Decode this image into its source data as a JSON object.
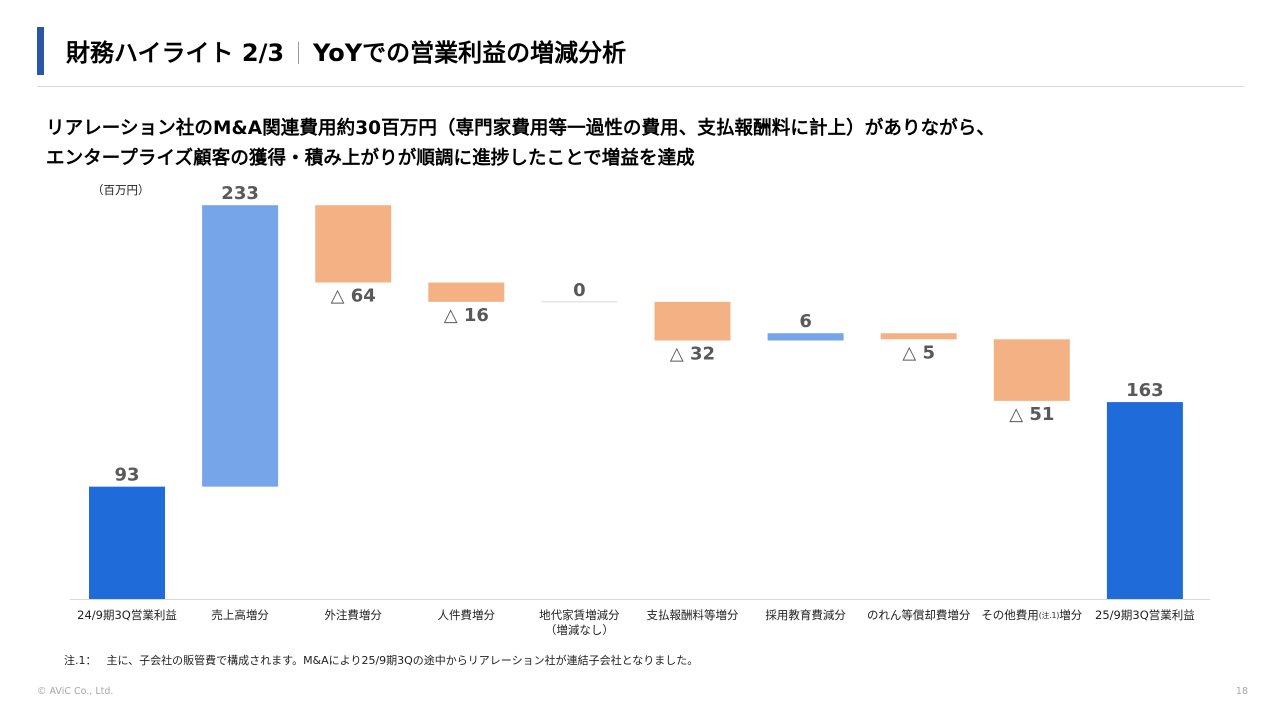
{
  "header": {
    "title_prefix": "財務ハイライト 2/3",
    "title_main": "YoYでの営業利益の増減分析"
  },
  "lead": {
    "line1": "リアレーション社のM&A関連費用約30百万円（専門家費用等一過性の費用、支払報酬料に計上）がありながら、",
    "line2": "エンタープライズ顧客の獲得・積み上がりが順調に進捗したことで増益を達成"
  },
  "unit_label": "（百万円）",
  "footnote": {
    "label": "注.1：",
    "text": "主に、子会社の販管費で構成されます。M&Aにより25/9期3Qの途中からリアレーション社が連結子会社となりました。"
  },
  "footer": {
    "copyright": "© AViC Co., Ltd.",
    "page_number": "18"
  },
  "colors": {
    "total": "#1f6bd9",
    "increase": "#76a5ea",
    "decrease": "#f4b183",
    "neutral": "#d9d9d9",
    "label": "#595959"
  },
  "chart_data": {
    "type": "bar",
    "subtype": "waterfall",
    "ylabel": "（百万円）",
    "ylim": [
      0,
      280
    ],
    "grid": false,
    "legend": "none",
    "categories": [
      [
        "24/9期3Q営業利益"
      ],
      [
        "売上高増分"
      ],
      [
        "外注費増分"
      ],
      [
        "人件費増分"
      ],
      [
        "地代家賃増減分",
        "（増減なし）"
      ],
      [
        "支払報酬料等増分"
      ],
      [
        "採用教育費減分"
      ],
      [
        "のれん等償却費増分"
      ],
      [
        "その他費用",
        "(注.1)",
        "増分"
      ],
      [
        "25/9期3Q営業利益"
      ]
    ],
    "values": [
      93,
      233,
      -64,
      -16,
      0,
      -32,
      6,
      -5,
      -51,
      163
    ],
    "kinds": [
      "total",
      "increase",
      "decrease",
      "decrease",
      "neutral",
      "decrease",
      "increase",
      "decrease",
      "decrease",
      "total"
    ],
    "data_labels": [
      "93",
      "233",
      "△ 64",
      "△ 16",
      "0",
      "△ 32",
      "6",
      "△ 5",
      "△ 51",
      "163"
    ]
  }
}
